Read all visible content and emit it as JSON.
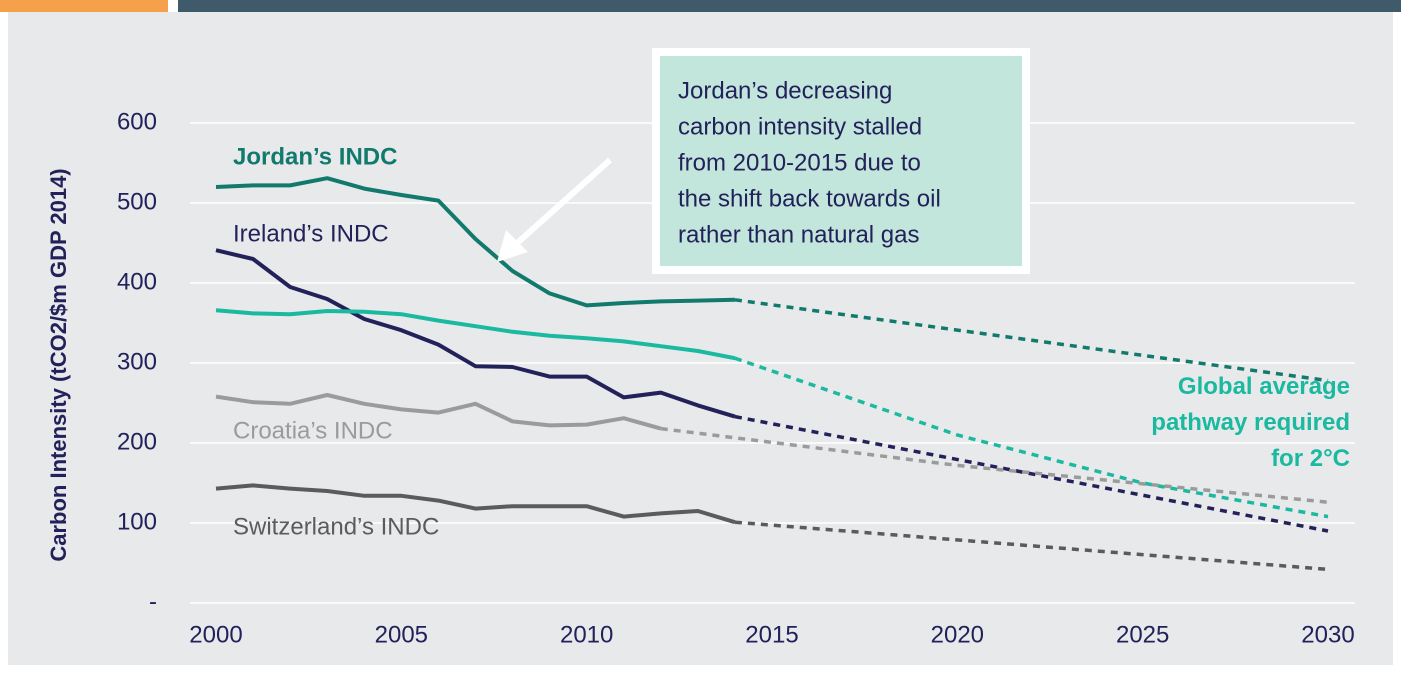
{
  "chart_data": {
    "type": "line",
    "y_label": "Carbon Intensity (tCO2/$m GDP 2014)",
    "xlim": [
      2000,
      2030
    ],
    "xticks": [
      2000,
      2005,
      2010,
      2015,
      2020,
      2025,
      2030
    ],
    "ylim": [
      0,
      600
    ],
    "yticks": [
      {
        "value": 0,
        "label": "-"
      },
      100,
      200,
      300,
      400,
      500,
      600
    ],
    "grid": true,
    "series": [
      {
        "name": "Jordan’s INDC",
        "color": "#127a6c",
        "x": [
          2000,
          2001,
          2002,
          2003,
          2004,
          2005,
          2006,
          2007,
          2008,
          2009,
          2010,
          2011,
          2012,
          2013,
          2014
        ],
        "values": [
          520,
          522,
          522,
          531,
          518,
          510,
          503,
          455,
          415,
          387,
          372,
          375,
          377,
          378,
          379
        ],
        "projection_x": [
          2014,
          2030
        ],
        "projection": [
          379,
          278
        ]
      },
      {
        "name": "Ireland’s INDC",
        "color": "#23215a",
        "x": [
          2000,
          2001,
          2002,
          2003,
          2004,
          2005,
          2006,
          2007,
          2008,
          2009,
          2010,
          2011,
          2012,
          2013,
          2014
        ],
        "values": [
          441,
          430,
          395,
          380,
          355,
          341,
          323,
          296,
          295,
          283,
          283,
          257,
          263,
          247,
          233
        ],
        "projection_x": [
          2014,
          2030
        ],
        "projection": [
          233,
          90
        ]
      },
      {
        "name": "Global average pathway required for 2°C",
        "color": "#1ab9a0",
        "x": [
          2000,
          2001,
          2002,
          2003,
          2004,
          2005,
          2006,
          2007,
          2008,
          2009,
          2010,
          2011,
          2012,
          2013,
          2014
        ],
        "values": [
          366,
          362,
          361,
          365,
          364,
          361,
          353,
          346,
          339,
          334,
          331,
          327,
          321,
          315,
          306
        ],
        "projection_x": [
          2014,
          2020,
          2025,
          2030
        ],
        "projection": [
          306,
          210,
          150,
          108
        ]
      },
      {
        "name": "Croatia’s INDC",
        "color": "#9b9b9b",
        "x": [
          2000,
          2001,
          2002,
          2003,
          2004,
          2005,
          2006,
          2007,
          2008,
          2009,
          2010,
          2011,
          2012
        ],
        "values": [
          258,
          251,
          249,
          260,
          249,
          242,
          238,
          249,
          227,
          222,
          223,
          231,
          218
        ],
        "projection_x": [
          2012,
          2020,
          2030
        ],
        "projection": [
          218,
          172,
          126
        ]
      },
      {
        "name": "Switzerland’s INDC",
        "color": "#5b5b5b",
        "x": [
          2000,
          2001,
          2002,
          2003,
          2004,
          2005,
          2006,
          2007,
          2008,
          2009,
          2010,
          2011,
          2012,
          2013,
          2014
        ],
        "values": [
          143,
          147,
          143,
          140,
          134,
          134,
          128,
          118,
          121,
          121,
          121,
          108,
          112,
          115,
          101
        ],
        "projection_x": [
          2014,
          2030
        ],
        "projection": [
          101,
          42
        ]
      }
    ],
    "annotation": [
      "Jordan’s decreasing",
      "carbon intensity stalled",
      "from 2010-2015 due to",
      "the shift back towards oil",
      "rather than natural gas"
    ]
  }
}
